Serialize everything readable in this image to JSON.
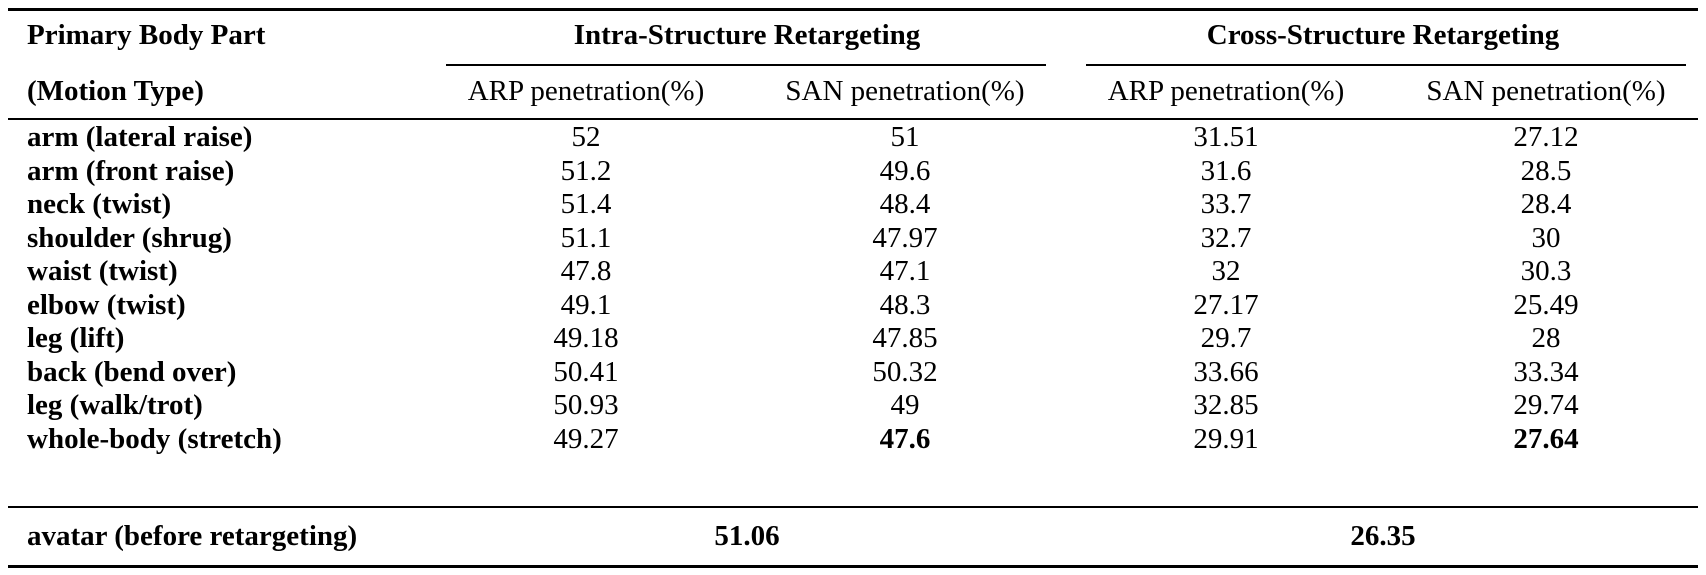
{
  "header": {
    "row_label_line1": "Primary Body Part",
    "row_label_line2": "(Motion Type)",
    "groups": [
      {
        "title": "Intra-Structure Retargeting",
        "columns": [
          "ARP penetration(%)",
          "SAN penetration(%)"
        ]
      },
      {
        "title": "Cross-Structure Retargeting",
        "columns": [
          "ARP penetration(%)",
          "SAN penetration(%)"
        ]
      }
    ]
  },
  "rows": [
    {
      "label": "arm (lateral raise)",
      "values": [
        "52",
        "51",
        "31.51",
        "27.12"
      ],
      "bold": [
        false,
        false,
        false,
        false
      ]
    },
    {
      "label": "arm (front raise)",
      "values": [
        "51.2",
        "49.6",
        "31.6",
        "28.5"
      ],
      "bold": [
        false,
        false,
        false,
        false
      ]
    },
    {
      "label": "neck (twist)",
      "values": [
        "51.4",
        "48.4",
        "33.7",
        "28.4"
      ],
      "bold": [
        false,
        false,
        false,
        false
      ]
    },
    {
      "label": "shoulder (shrug)",
      "values": [
        "51.1",
        "47.97",
        "32.7",
        "30"
      ],
      "bold": [
        false,
        false,
        false,
        false
      ]
    },
    {
      "label": "waist (twist)",
      "values": [
        "47.8",
        "47.1",
        "32",
        "30.3"
      ],
      "bold": [
        false,
        false,
        false,
        false
      ]
    },
    {
      "label": "elbow (twist)",
      "values": [
        "49.1",
        "48.3",
        "27.17",
        "25.49"
      ],
      "bold": [
        false,
        false,
        false,
        false
      ]
    },
    {
      "label": "leg (lift)",
      "values": [
        "49.18",
        "47.85",
        "29.7",
        "28"
      ],
      "bold": [
        false,
        false,
        false,
        false
      ]
    },
    {
      "label": "back (bend over)",
      "values": [
        "50.41",
        "50.32",
        "33.66",
        "33.34"
      ],
      "bold": [
        false,
        false,
        false,
        false
      ]
    },
    {
      "label": "leg (walk/trot)",
      "values": [
        "50.93",
        "49",
        "32.85",
        "29.74"
      ],
      "bold": [
        false,
        false,
        false,
        false
      ]
    },
    {
      "label": "whole-body (stretch)",
      "values": [
        "49.27",
        "47.6",
        "29.91",
        "27.64"
      ],
      "bold": [
        false,
        true,
        false,
        true
      ]
    }
  ],
  "summary": {
    "label": "avatar (before retargeting)",
    "intra_value": "51.06",
    "cross_value": "26.35"
  }
}
